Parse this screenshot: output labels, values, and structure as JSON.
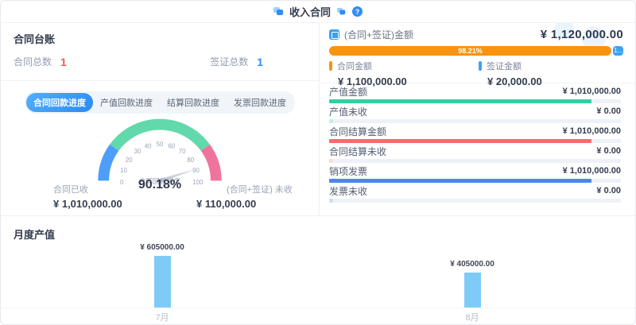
{
  "header": {
    "title": "收入合同",
    "help": "?"
  },
  "colors": {
    "accent_blue": "#2f8df6",
    "red_number": "#f5594e",
    "orange_bar": "#f9930f",
    "visa_blue": "#3ba2f8",
    "teal": "#2fd0a3",
    "teal_light": "#c5efe4",
    "settle_red": "#f56c6c",
    "settle_red_light": "#fbdcdc",
    "invoice_blue": "#4b86ee",
    "invoice_blue_light": "#d3dff8",
    "gauge_blue": "#4d9ef8",
    "gauge_green": "#62d9ab",
    "gauge_pink": "#f0739e",
    "month_bar": "#7fcbf7"
  },
  "ledger": {
    "title": "合同台账",
    "contract_total_label": "合同总数",
    "contract_total": "1",
    "visa_total_label": "签证总数",
    "visa_total": "1"
  },
  "tabs": [
    {
      "label": "合同回款进度",
      "active": true
    },
    {
      "label": "产值回款进度",
      "active": false
    },
    {
      "label": "结算回款进度",
      "active": false
    },
    {
      "label": "发票回款进度",
      "active": false
    }
  ],
  "gauge": {
    "label": "合同回款进度",
    "value": 90.18,
    "display": "90.18%",
    "ticks": [
      0,
      10,
      20,
      30,
      40,
      50,
      60,
      70,
      80,
      90,
      100
    ],
    "segments": [
      {
        "from": 0,
        "to": 20,
        "color_key": "gauge_blue"
      },
      {
        "from": 20,
        "to": 80,
        "color_key": "gauge_green"
      },
      {
        "from": 80,
        "to": 100,
        "color_key": "gauge_pink"
      }
    ]
  },
  "gauge_stats": {
    "received_label": "合同已收",
    "received_value": "¥ 1,010,000.00",
    "unreceived_label": "(合同+签证) 未收",
    "unreceived_value": "¥ 110,000.00"
  },
  "summary": {
    "label": "(合同+签证)金额",
    "total": "¥ 1,120,000.00",
    "bar": {
      "contract_pct": 98.21,
      "contract_text": "98.21%",
      "visa_pct": 1.79,
      "visa_text": "1..."
    },
    "legend": [
      {
        "label": "合同金额",
        "value": "¥ 1,100,000.00"
      },
      {
        "label": "签证金额",
        "value": "¥ 20,000.00"
      }
    ]
  },
  "metrics": [
    {
      "label": "产值金额",
      "value": "¥ 1,010,000.00",
      "pct": 90
    },
    {
      "label": "产值未收",
      "value": "¥ 0.00",
      "pct": 1.3
    },
    {
      "label": "合同结算金额",
      "value": "¥ 1,010,000.00",
      "pct": 90
    },
    {
      "label": "合同结算未收",
      "value": "¥ 0.00",
      "pct": 1.3
    },
    {
      "label": "销项发票",
      "value": "¥ 1,010,000.00",
      "pct": 90
    },
    {
      "label": "发票未收",
      "value": "¥ 0.00",
      "pct": 1.3
    }
  ],
  "chart_data": {
    "type": "bar",
    "title": "月度产值",
    "categories": [
      "7月",
      "8月"
    ],
    "values": [
      605000,
      405000
    ],
    "value_labels": [
      "¥ 605000.00",
      "¥ 405000.00"
    ],
    "xlabel": "",
    "ylabel": "",
    "ylim": [
      0,
      605000
    ],
    "grid": false,
    "legend_position": "none",
    "bar_color_key": "month_bar"
  }
}
